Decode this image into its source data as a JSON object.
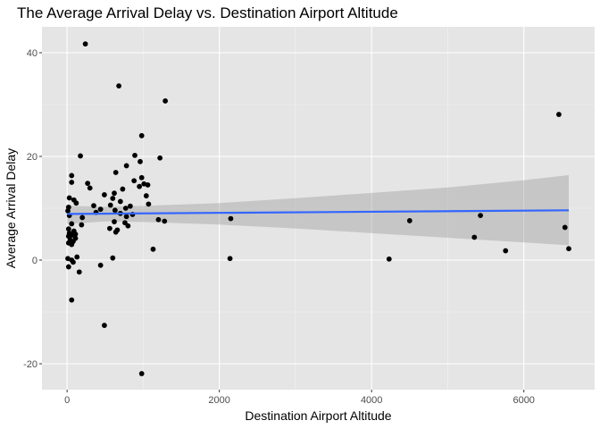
{
  "chart_data": {
    "type": "scatter",
    "title": "The Average Arrival Delay vs. Destination Airport Altitude",
    "xlabel": "Destination Airport Altitude",
    "ylabel": "Average Arrival Delay",
    "xlim": [
      -330,
      6930
    ],
    "ylim": [
      -25,
      45
    ],
    "xticks": [
      0,
      2000,
      4000,
      6000
    ],
    "xtick_labels": [
      "0",
      "2000",
      "4000",
      "6000"
    ],
    "yticks": [
      -20,
      0,
      20,
      40
    ],
    "ytick_labels": [
      "-20",
      "0",
      "20",
      "40"
    ],
    "grid": true,
    "legend": "none",
    "colors": {
      "panel": "#e5e5e5",
      "grid_major": "#ffffff",
      "grid_minor": "#f2f2f2",
      "points": "#000000",
      "fit_line": "#3366ff",
      "ribbon": "#999999"
    },
    "points": [
      {
        "x": 240,
        "y": 41.7
      },
      {
        "x": 680,
        "y": 33.6
      },
      {
        "x": 1290,
        "y": 30.7
      },
      {
        "x": 980,
        "y": 24.0
      },
      {
        "x": 175,
        "y": 20.1
      },
      {
        "x": 890,
        "y": 20.2
      },
      {
        "x": 1220,
        "y": 19.7
      },
      {
        "x": 960,
        "y": 19.0
      },
      {
        "x": 780,
        "y": 18.2
      },
      {
        "x": 640,
        "y": 16.9
      },
      {
        "x": 60,
        "y": 16.3
      },
      {
        "x": 980,
        "y": 15.9
      },
      {
        "x": 880,
        "y": 15.3
      },
      {
        "x": 60,
        "y": 15.0
      },
      {
        "x": 270,
        "y": 14.8
      },
      {
        "x": 1010,
        "y": 14.7
      },
      {
        "x": 1060,
        "y": 14.5
      },
      {
        "x": 950,
        "y": 14.2
      },
      {
        "x": 300,
        "y": 13.9
      },
      {
        "x": 730,
        "y": 13.7
      },
      {
        "x": 620,
        "y": 12.9
      },
      {
        "x": 490,
        "y": 12.6
      },
      {
        "x": 1040,
        "y": 12.4
      },
      {
        "x": 30,
        "y": 12.0
      },
      {
        "x": 600,
        "y": 11.9
      },
      {
        "x": 90,
        "y": 11.6
      },
      {
        "x": 700,
        "y": 11.3
      },
      {
        "x": 120,
        "y": 11.0
      },
      {
        "x": 1070,
        "y": 10.8
      },
      {
        "x": 570,
        "y": 10.6
      },
      {
        "x": 350,
        "y": 10.5
      },
      {
        "x": 830,
        "y": 10.4
      },
      {
        "x": 20,
        "y": 10.2
      },
      {
        "x": 770,
        "y": 10.0
      },
      {
        "x": 440,
        "y": 9.8
      },
      {
        "x": 630,
        "y": 9.6
      },
      {
        "x": 10,
        "y": 9.5
      },
      {
        "x": 380,
        "y": 9.2
      },
      {
        "x": 700,
        "y": 9.0
      },
      {
        "x": 860,
        "y": 8.8
      },
      {
        "x": 30,
        "y": 8.6
      },
      {
        "x": 780,
        "y": 8.4
      },
      {
        "x": 200,
        "y": 8.2
      },
      {
        "x": 2150,
        "y": 8.0
      },
      {
        "x": 1200,
        "y": 7.8
      },
      {
        "x": 5430,
        "y": 8.6
      },
      {
        "x": 4500,
        "y": 7.6
      },
      {
        "x": 1280,
        "y": 7.5
      },
      {
        "x": 620,
        "y": 7.4
      },
      {
        "x": 760,
        "y": 7.2
      },
      {
        "x": 60,
        "y": 7.0
      },
      {
        "x": 190,
        "y": 6.8
      },
      {
        "x": 800,
        "y": 6.6
      },
      {
        "x": 6540,
        "y": 6.3
      },
      {
        "x": 560,
        "y": 6.1
      },
      {
        "x": 20,
        "y": 6.0
      },
      {
        "x": 660,
        "y": 5.8
      },
      {
        "x": 90,
        "y": 5.6
      },
      {
        "x": 640,
        "y": 5.4
      },
      {
        "x": 30,
        "y": 5.2
      },
      {
        "x": 110,
        "y": 5.0
      },
      {
        "x": 60,
        "y": 4.8
      },
      {
        "x": 20,
        "y": 4.6
      },
      {
        "x": 5350,
        "y": 4.4
      },
      {
        "x": 110,
        "y": 4.2
      },
      {
        "x": 40,
        "y": 3.9
      },
      {
        "x": 80,
        "y": 3.6
      },
      {
        "x": 20,
        "y": 3.3
      },
      {
        "x": 60,
        "y": 3.0
      },
      {
        "x": 6460,
        "y": 28.1
      },
      {
        "x": 6590,
        "y": 2.2
      },
      {
        "x": 1130,
        "y": 2.1
      },
      {
        "x": 5760,
        "y": 1.8
      },
      {
        "x": 130,
        "y": 0.6
      },
      {
        "x": 2140,
        "y": 0.3
      },
      {
        "x": 600,
        "y": 0.4
      },
      {
        "x": 10,
        "y": 0.3
      },
      {
        "x": 4230,
        "y": 0.2
      },
      {
        "x": 60,
        "y": 0.0
      },
      {
        "x": 80,
        "y": -0.4
      },
      {
        "x": 440,
        "y": -1.0
      },
      {
        "x": 20,
        "y": -1.3
      },
      {
        "x": 160,
        "y": -2.3
      },
      {
        "x": 60,
        "y": -7.7
      },
      {
        "x": 490,
        "y": -12.6
      },
      {
        "x": 980,
        "y": -21.9
      }
    ],
    "fit": {
      "method": "lm",
      "line": [
        {
          "x": 0,
          "y": 8.9
        },
        {
          "x": 6590,
          "y": 9.6
        }
      ],
      "ribbon": [
        {
          "x": 0,
          "lower": 6.95,
          "upper": 10.5
        },
        {
          "x": 500,
          "lower": 7.45,
          "upper": 10.25
        },
        {
          "x": 1000,
          "lower": 7.35,
          "upper": 10.45
        },
        {
          "x": 2000,
          "lower": 6.85,
          "upper": 11.0
        },
        {
          "x": 3000,
          "lower": 6.1,
          "upper": 11.95
        },
        {
          "x": 4000,
          "lower": 5.2,
          "upper": 12.95
        },
        {
          "x": 5000,
          "lower": 4.3,
          "upper": 14.0
        },
        {
          "x": 6000,
          "lower": 3.4,
          "upper": 15.4
        },
        {
          "x": 6590,
          "lower": 2.85,
          "upper": 16.4
        }
      ]
    }
  }
}
